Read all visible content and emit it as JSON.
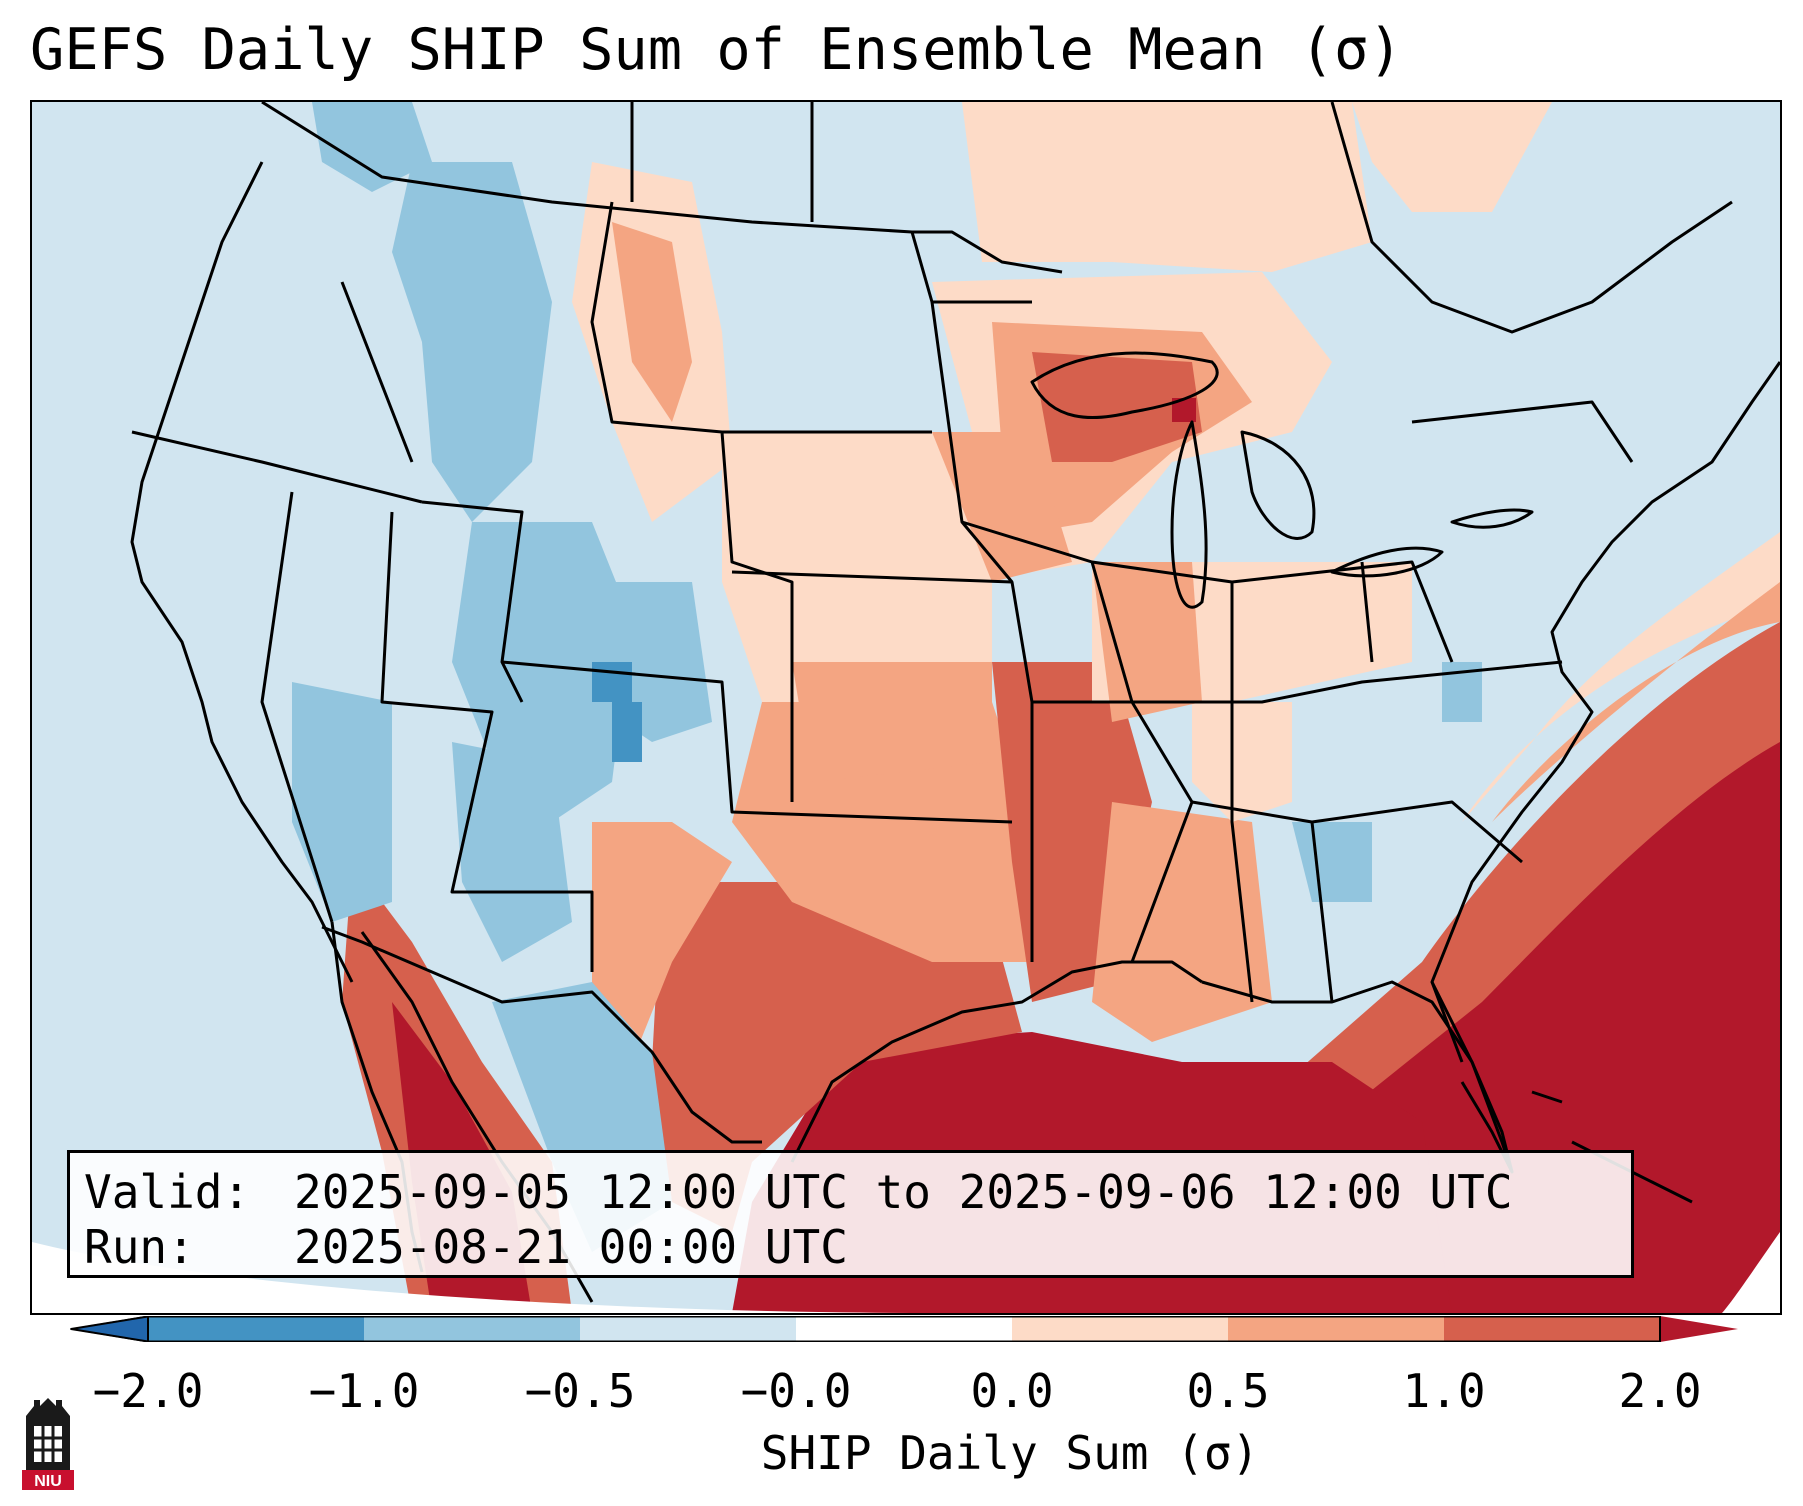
{
  "figure": {
    "title": "GEFS Daily SHIP Sum of Ensemble Mean (σ)"
  },
  "info": {
    "valid_label": "Valid:",
    "valid_value": "2025-09-05 12:00 UTC to 2025-09-06 12:00 UTC",
    "run_label": "Run:",
    "run_value": "2025-08-21 00:00 UTC"
  },
  "colorbar": {
    "label": "SHIP Daily Sum (σ)",
    "ticks": [
      "−2.0",
      "−1.0",
      "−0.5",
      "−0.0",
      "0.0",
      "0.5",
      "1.0",
      "2.0"
    ],
    "colors": {
      "under": "#2166ac",
      "bins": [
        "#4393c3",
        "#92c5de",
        "#d1e5f0",
        "#ffffff",
        "#fddbc7",
        "#f4a582",
        "#d6604d"
      ],
      "over": "#b2182b"
    }
  },
  "logo": {
    "text": "NIU",
    "brand_color": "#c8102e"
  }
}
